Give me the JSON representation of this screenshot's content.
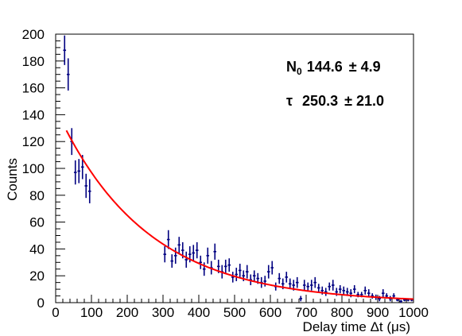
{
  "chart_data": {
    "type": "scatter",
    "xlabel": "Delay time Δt (μs)",
    "ylabel": "Counts",
    "xlim": [
      0,
      1000
    ],
    "ylim": [
      0,
      200
    ],
    "x_ticks": [
      "0",
      "100",
      "200",
      "300",
      "400",
      "500",
      "600",
      "700",
      "800",
      "900",
      "1000"
    ],
    "y_ticks": [
      "0",
      "20",
      "40",
      "60",
      "80",
      "100",
      "120",
      "140",
      "160",
      "180",
      "200"
    ],
    "grid": false,
    "colors": {
      "data": "#000080",
      "fit": "#ff0000"
    },
    "fit": {
      "type": "exponential",
      "x_range": [
        30,
        1000
      ],
      "N0_symbol": "N",
      "N0_subscript": "0",
      "N0_value": "144.6",
      "N0_error": "± 4.9",
      "tau_symbol": "τ",
      "tau_value": "250.3",
      "tau_error": "± 21.0",
      "N0": 144.6,
      "tau": 250.3
    },
    "series": [
      {
        "points": [
          [
            25,
            188,
            11
          ],
          [
            35,
            170,
            12
          ],
          [
            45,
            120,
            10
          ],
          [
            55,
            97,
            9
          ],
          [
            65,
            98,
            9
          ],
          [
            75,
            101,
            9
          ],
          [
            85,
            87,
            9
          ],
          [
            95,
            83,
            9
          ],
          [
            305,
            36,
            6
          ],
          [
            315,
            47,
            7
          ],
          [
            325,
            31,
            5
          ],
          [
            335,
            35,
            6
          ],
          [
            345,
            43,
            6
          ],
          [
            355,
            39,
            6
          ],
          [
            365,
            32,
            6
          ],
          [
            375,
            36,
            6
          ],
          [
            385,
            37,
            6
          ],
          [
            395,
            39,
            6
          ],
          [
            405,
            30,
            5
          ],
          [
            415,
            25,
            5
          ],
          [
            425,
            35,
            6
          ],
          [
            435,
            26,
            5
          ],
          [
            445,
            38,
            6
          ],
          [
            455,
            27,
            5
          ],
          [
            465,
            23,
            5
          ],
          [
            475,
            27,
            5
          ],
          [
            485,
            28,
            5
          ],
          [
            495,
            19,
            4
          ],
          [
            505,
            21,
            5
          ],
          [
            515,
            24,
            5
          ],
          [
            525,
            20,
            4
          ],
          [
            535,
            23,
            5
          ],
          [
            545,
            17,
            4
          ],
          [
            555,
            20,
            4
          ],
          [
            565,
            18,
            4
          ],
          [
            575,
            15,
            4
          ],
          [
            585,
            16,
            4
          ],
          [
            595,
            23,
            5
          ],
          [
            605,
            26,
            5
          ],
          [
            615,
            12,
            3
          ],
          [
            625,
            18,
            4
          ],
          [
            635,
            14,
            4
          ],
          [
            645,
            19,
            4
          ],
          [
            655,
            14,
            4
          ],
          [
            665,
            13,
            4
          ],
          [
            675,
            15,
            4
          ],
          [
            685,
            3,
            2
          ],
          [
            695,
            13,
            4
          ],
          [
            705,
            12,
            3
          ],
          [
            715,
            13,
            4
          ],
          [
            725,
            15,
            4
          ],
          [
            735,
            11,
            3
          ],
          [
            745,
            9,
            3
          ],
          [
            755,
            8,
            3
          ],
          [
            765,
            12,
            3
          ],
          [
            775,
            13,
            4
          ],
          [
            785,
            8,
            3
          ],
          [
            795,
            10,
            3
          ],
          [
            805,
            9,
            3
          ],
          [
            815,
            8,
            3
          ],
          [
            825,
            7,
            3
          ],
          [
            835,
            10,
            3
          ],
          [
            845,
            6,
            2
          ],
          [
            855,
            6,
            2
          ],
          [
            865,
            9,
            3
          ],
          [
            875,
            7,
            3
          ],
          [
            885,
            5,
            2
          ],
          [
            895,
            4,
            2
          ],
          [
            905,
            3,
            2
          ],
          [
            915,
            7,
            3
          ],
          [
            925,
            5,
            2
          ],
          [
            935,
            3,
            2
          ],
          [
            945,
            5,
            2
          ],
          [
            955,
            2,
            1
          ],
          [
            965,
            1,
            1
          ],
          [
            975,
            2,
            1
          ],
          [
            985,
            2,
            1
          ],
          [
            995,
            2,
            1
          ]
        ]
      }
    ]
  }
}
